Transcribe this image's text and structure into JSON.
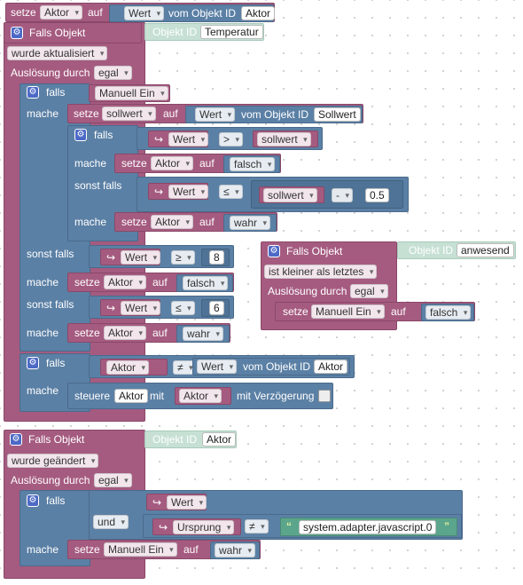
{
  "top": {
    "setze": "setze",
    "var": "Aktor",
    "auf": "auf",
    "wert": "Wert",
    "vom": "vom Objekt ID",
    "id": "Aktor"
  },
  "trig1": {
    "title": "Falls Objekt",
    "objid_label": "Objekt ID",
    "objid": "Temperatur",
    "cond": "wurde aktualisiert",
    "ausl": "Auslösung durch",
    "ausl_val": "egal"
  },
  "if1": {
    "falls": "falls",
    "var": "Manuell Ein",
    "mache": "mache",
    "set1": {
      "setze": "setze",
      "var": "sollwert",
      "auf": "auf",
      "wert": "Wert",
      "vom": "vom Objekt ID",
      "id": "Sollwert"
    },
    "inner": {
      "falls": "falls",
      "arrow": "↪",
      "wert": "Wert",
      "op": ">",
      "cmp": "sollwert",
      "mache": "mache",
      "set_a": {
        "setze": "setze",
        "var": "Aktor",
        "auf": "auf",
        "val": "falsch"
      },
      "sonst": "sonst falls",
      "wert2": "Wert",
      "op2": "≤",
      "cmp2": "sollwert",
      "minus": "-",
      "num": "0.5",
      "mache2": "mache",
      "set_b": {
        "setze": "setze",
        "var": "Aktor",
        "auf": "auf",
        "val": "wahr"
      }
    },
    "sonst1": "sonst falls",
    "sf1": {
      "wert": "Wert",
      "op": "≥",
      "num": "8"
    },
    "mache1": "mache",
    "set_c": {
      "setze": "setze",
      "var": "Aktor",
      "auf": "auf",
      "val": "falsch"
    },
    "sonst2": "sonst falls",
    "sf2": {
      "wert": "Wert",
      "op": "≤",
      "num": "6"
    },
    "mache2": "mache",
    "set_d": {
      "setze": "setze",
      "var": "Aktor",
      "auf": "auf",
      "val": "wahr"
    }
  },
  "if2": {
    "falls": "falls",
    "var": "Aktor",
    "op": "≠",
    "wert": "Wert",
    "vom": "vom Objekt ID",
    "id": "Aktor",
    "mache": "mache",
    "steuere": "steuere",
    "var2": "Aktor",
    "mit": "mit",
    "val": "Aktor",
    "delay": "mit Verzögerung"
  },
  "side": {
    "title": "Falls Objekt",
    "objid_label": "Objekt ID",
    "objid": "anwesend",
    "cond": "ist kleiner als letztes",
    "ausl": "Auslösung durch",
    "ausl_val": "egal",
    "setze": "setze",
    "var": "Manuell Ein",
    "auf": "auf",
    "val": "falsch"
  },
  "trig2": {
    "title": "Falls Objekt",
    "objid_label": "Objekt ID",
    "objid": "Aktor",
    "cond": "wurde geändert",
    "ausl": "Auslösung durch",
    "ausl_val": "egal",
    "falls": "falls",
    "wert": "Wert",
    "und": "und",
    "urs": "Ursprung",
    "op": "≠",
    "str": "system.adapter.javascript.0",
    "mache": "mache",
    "setze": "setze",
    "var": "Manuell Ein",
    "auf": "auf",
    "val": "wahr"
  },
  "colors": {
    "magenta": "#a55b80",
    "blue": "#5b80a5",
    "green": "#5ba58c"
  }
}
